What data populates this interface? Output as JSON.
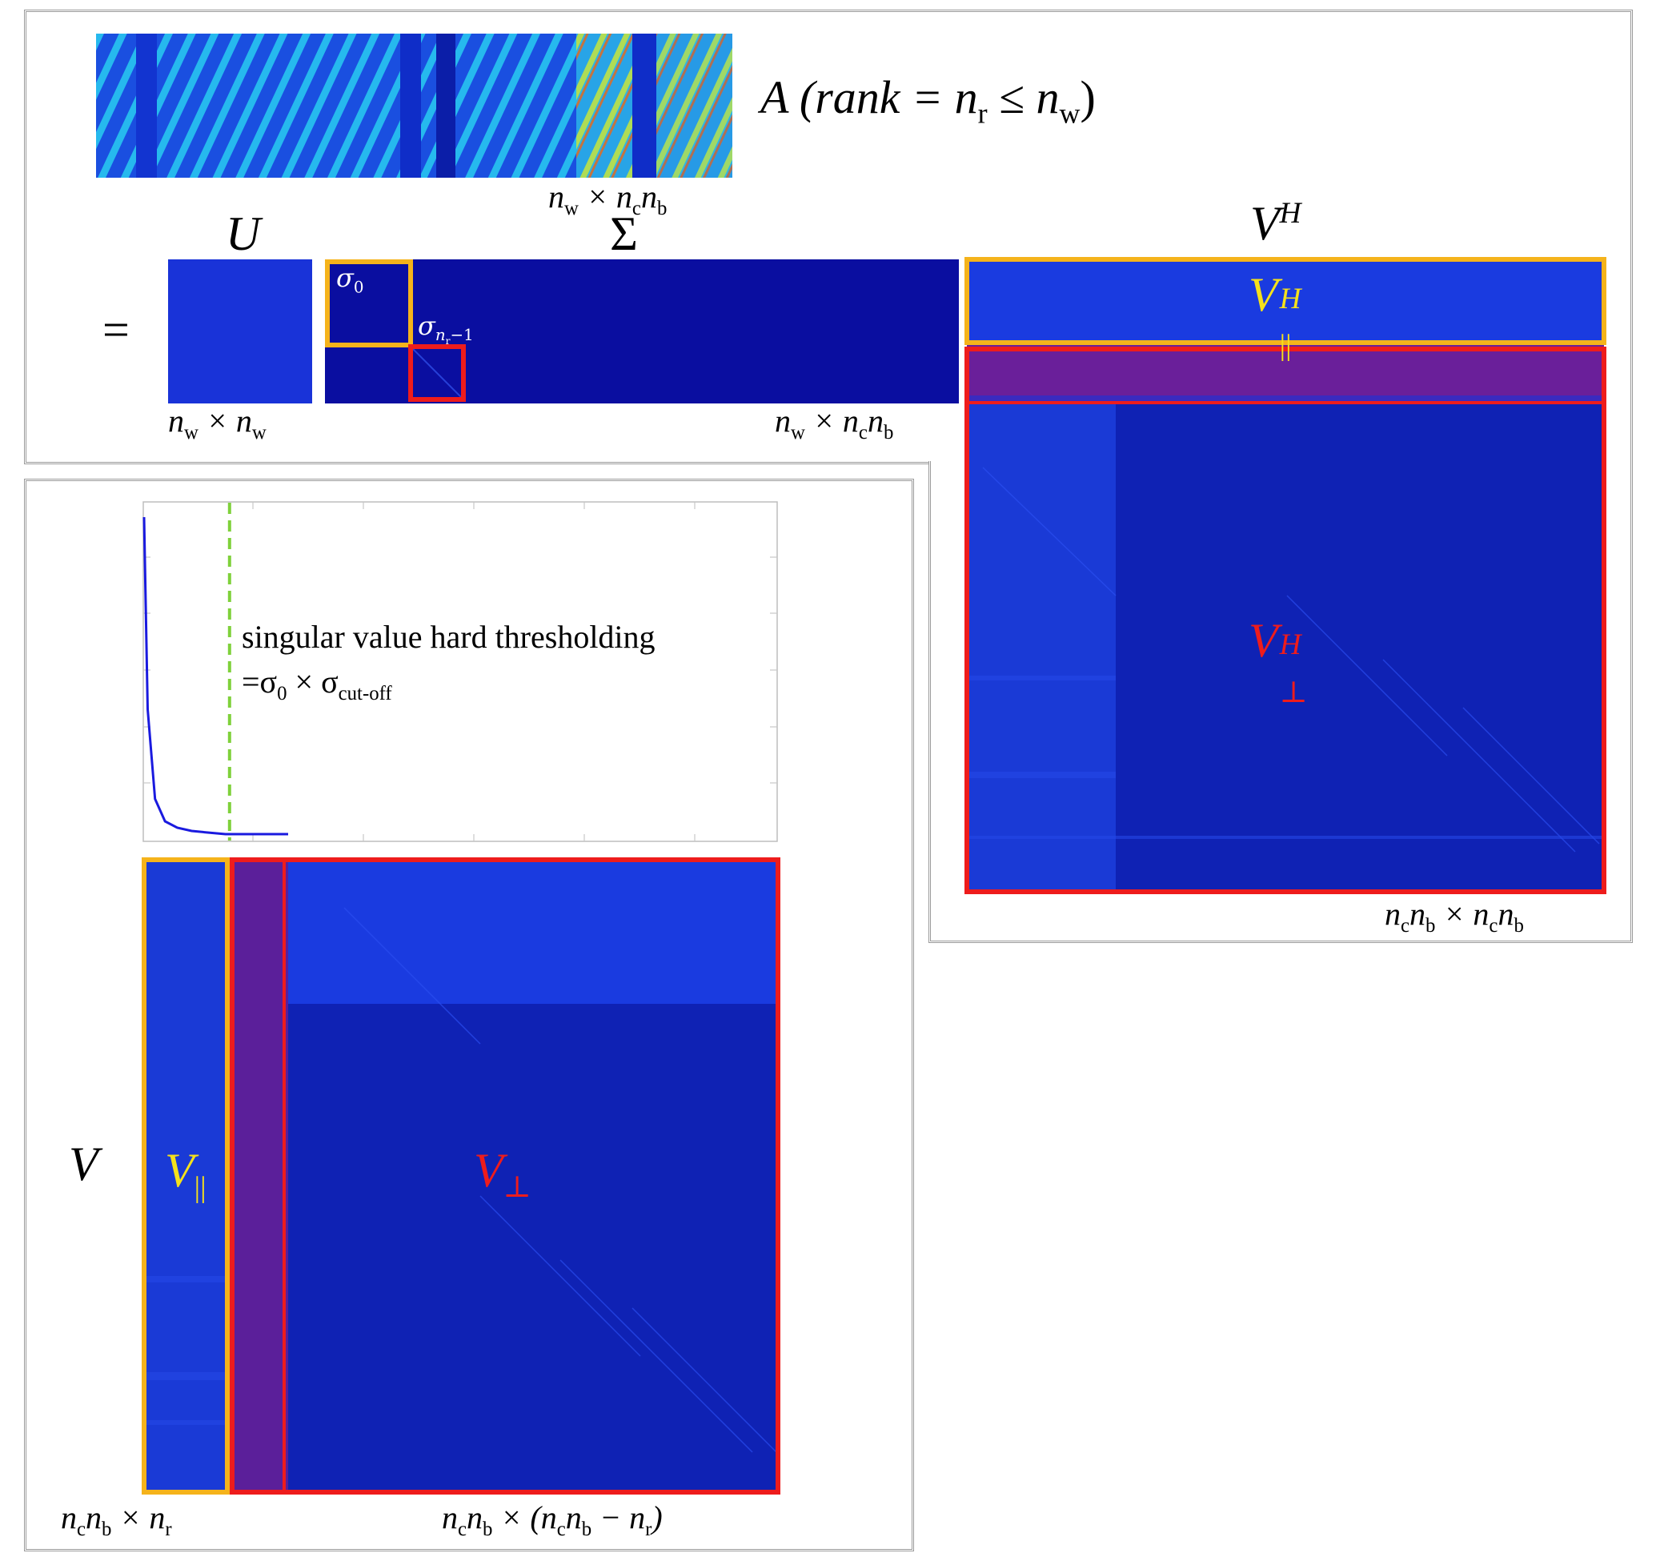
{
  "top": {
    "A_label": "A (rank = n",
    "A_rank_sub": "r",
    "A_leq": " ≤ n",
    "A_w_sub": "w",
    "A_close": ")",
    "A_dims": "n_w × n_c n_b",
    "U_label": "U",
    "U_dims": "n_w × n_w",
    "Sigma_label": "Σ",
    "Sigma_dims": "n_w × n_c n_b",
    "equals": "=",
    "sigma0": "σ",
    "sigma0_sub": "0",
    "sigma_last": "σ",
    "sigma_last_sub": "n_r−1",
    "VH_label": "V",
    "VH_sup": "H",
    "VH_par_label": "V",
    "VH_par_sup": "H",
    "VH_par_sub": "||",
    "VH_perp_label": "V",
    "VH_perp_sup": "H",
    "VH_perp_sub": "⊥",
    "VH_dims": "n_c n_b × n_c n_b"
  },
  "bottom": {
    "threshold_line1": "singular value hard thresholding",
    "threshold_line2_prefix": "=σ",
    "threshold_line2_sub0": "0",
    "threshold_line2_mid": " × σ",
    "threshold_line2_sub": "cut-off",
    "V_label": "V",
    "V_par_label": "V",
    "V_par_sub": "||",
    "V_perp_label": "V",
    "V_perp_sub": "⊥",
    "V_par_dims": "n_c n_b × n_r",
    "V_perp_dims": "n_c n_b × (n_c n_b − n_r)"
  },
  "colors": {
    "orange": "#f5b31b",
    "red": "#ee1c1c",
    "yellow_text": "#f5e11b",
    "red_text": "#ee1c1c",
    "threshold_line": "#7fd13b",
    "curve": "#1a1adf"
  },
  "chart_data": {
    "type": "line",
    "title": "",
    "xlabel": "",
    "ylabel": "",
    "series": [
      {
        "values": [
          1.0,
          0.4,
          0.12,
          0.05,
          0.03,
          0.02,
          0.015,
          0.01,
          0.01,
          0.01,
          0.01
        ]
      }
    ],
    "threshold_x": 0.32,
    "grid": false
  }
}
